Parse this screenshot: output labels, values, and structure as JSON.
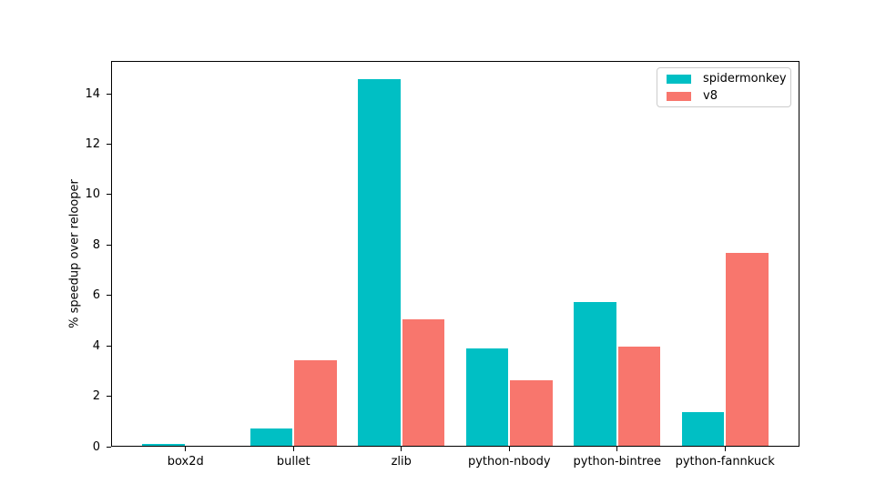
{
  "chart_data": {
    "type": "bar",
    "title": "",
    "xlabel": "",
    "ylabel": "% speedup over relooper",
    "categories": [
      "box2d",
      "bullet",
      "zlib",
      "python-nbody",
      "python-bintree",
      "python-fannkuck"
    ],
    "series": [
      {
        "name": "spidermonkey",
        "color": "#00BFC4",
        "values": [
          0.08,
          0.7,
          14.55,
          3.85,
          5.7,
          1.35
        ]
      },
      {
        "name": "v8",
        "color": "#F8766D",
        "values": [
          0.0,
          3.4,
          5.0,
          2.6,
          3.95,
          7.65
        ]
      }
    ],
    "yticks": [
      0,
      2,
      4,
      6,
      8,
      10,
      12,
      14
    ],
    "ylim": [
      0,
      15.3
    ],
    "xlim": [
      -0.69,
      5.69
    ],
    "bar_width": 0.39,
    "grid": false,
    "legend_position": "upper right",
    "background_color": "#ffffff",
    "axis_color": "#000000"
  },
  "legend": {
    "items": [
      {
        "label": "spidermonkey",
        "color": "#00BFC4"
      },
      {
        "label": "v8",
        "color": "#F8766D"
      }
    ]
  }
}
